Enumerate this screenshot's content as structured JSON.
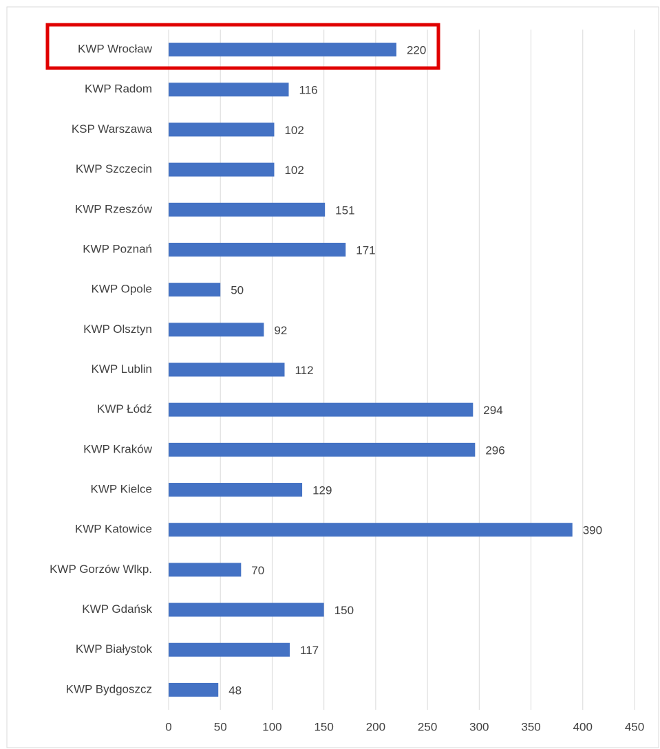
{
  "chart_data": {
    "type": "bar",
    "orientation": "horizontal",
    "categories": [
      "KWP Wrocław",
      "KWP Radom",
      "KSP Warszawa",
      "KWP Szczecin",
      "KWP Rzeszów",
      "KWP Poznań",
      "KWP Opole",
      "KWP Olsztyn",
      "KWP Lublin",
      "KWP Łódź",
      "KWP Kraków",
      "KWP Kielce",
      "KWP Katowice",
      "KWP Gorzów Wlkp.",
      "KWP Gdańsk",
      "KWP Białystok",
      "KWP Bydgoszcz"
    ],
    "values": [
      220,
      116,
      102,
      102,
      151,
      171,
      50,
      92,
      112,
      294,
      296,
      129,
      390,
      70,
      150,
      117,
      48
    ],
    "color": "#4472c4",
    "xlim": [
      0,
      450
    ],
    "xticks": [
      0,
      50,
      100,
      150,
      200,
      250,
      300,
      350,
      400,
      450
    ],
    "grid": true
  }
}
